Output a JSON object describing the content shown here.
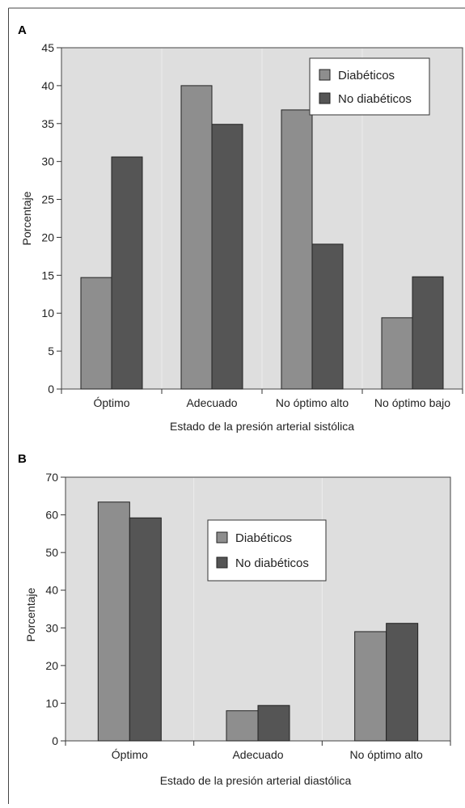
{
  "colors": {
    "plot_background": "#dedede",
    "series_1": "#8e8e8e",
    "series_2": "#555555",
    "gridline": "#ececec"
  },
  "chart_data": [
    {
      "panel": "A",
      "type": "bar",
      "categories": [
        "Óptimo",
        "Adecuado",
        "No óptimo alto",
        "No óptimo bajo"
      ],
      "series": [
        {
          "name": "Diabéticos",
          "values": [
            14.7,
            40.0,
            36.8,
            9.4
          ]
        },
        {
          "name": "No diabéticos",
          "values": [
            30.6,
            34.9,
            19.1,
            14.8
          ]
        }
      ],
      "title": "",
      "xlabel": "Estado de la presión arterial sistólica",
      "ylabel": "Porcentaje",
      "ylim": [
        0,
        45
      ],
      "yticks": [
        0,
        5,
        10,
        15,
        20,
        25,
        30,
        35,
        40,
        45
      ],
      "grid": "vertical",
      "legend": "top-right"
    },
    {
      "panel": "B",
      "type": "bar",
      "categories": [
        "Óptimo",
        "Adecuado",
        "No óptimo alto"
      ],
      "series": [
        {
          "name": "Diabéticos",
          "values": [
            63.4,
            8.0,
            29.0
          ]
        },
        {
          "name": "No diabéticos",
          "values": [
            59.2,
            9.4,
            31.2
          ]
        }
      ],
      "title": "",
      "xlabel": "Estado de la presión arterial diastólica",
      "ylabel": "Porcentaje",
      "ylim": [
        0,
        70
      ],
      "yticks": [
        0,
        10,
        20,
        30,
        40,
        50,
        60,
        70
      ],
      "grid": "vertical",
      "legend": "top-center"
    }
  ]
}
